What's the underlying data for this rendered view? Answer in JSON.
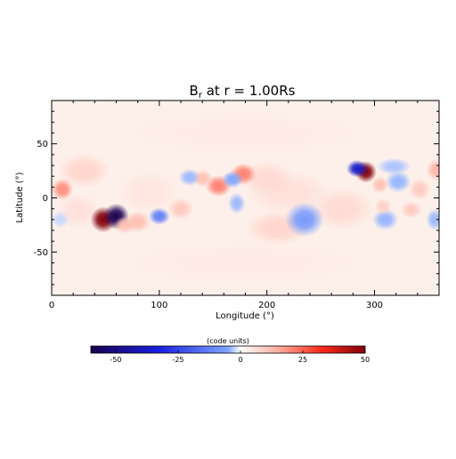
{
  "chart_data": {
    "type": "heatmap",
    "title": "B",
    "title_sub": "r",
    "title_rest": " at r = 1.00Rs",
    "xlabel": "Longitude (°)",
    "ylabel": "Latitude (°)",
    "xlim": [
      0,
      360
    ],
    "ylim": [
      -90,
      90
    ],
    "xticks": [
      0,
      100,
      200,
      300
    ],
    "yticks": [
      -50,
      0,
      50
    ],
    "grid": false,
    "colormap": "blue-white-red (diverging)",
    "colorbar": {
      "label": "(code units)",
      "range": [
        -60,
        50
      ],
      "ticks": [
        -50,
        -25,
        0,
        25,
        50
      ],
      "orientation": "horizontal",
      "placement": "bottom"
    },
    "features": [
      {
        "lon": 48,
        "lat": -20,
        "value": 50,
        "sx": 6,
        "sy": 6
      },
      {
        "lon": 60,
        "lat": -17,
        "value": -60,
        "sx": 6,
        "sy": 6
      },
      {
        "lon": 292,
        "lat": 24,
        "value": 50,
        "sx": 5,
        "sy": 5
      },
      {
        "lon": 284,
        "lat": 27,
        "value": -45,
        "sx": 5,
        "sy": 4
      },
      {
        "lon": 178,
        "lat": 22,
        "value": 22,
        "sx": 6,
        "sy": 5
      },
      {
        "lon": 155,
        "lat": 11,
        "value": 22,
        "sx": 6,
        "sy": 5
      },
      {
        "lon": 140,
        "lat": 18,
        "value": 12,
        "sx": 5,
        "sy": 4
      },
      {
        "lon": 10,
        "lat": 8,
        "value": 20,
        "sx": 5,
        "sy": 5
      },
      {
        "lon": 120,
        "lat": -10,
        "value": 10,
        "sx": 6,
        "sy": 5
      },
      {
        "lon": 80,
        "lat": -22,
        "value": 12,
        "sx": 6,
        "sy": 5
      },
      {
        "lon": 100,
        "lat": -17,
        "value": -25,
        "sx": 5,
        "sy": 4
      },
      {
        "lon": 128,
        "lat": 19,
        "value": -14,
        "sx": 5,
        "sy": 4
      },
      {
        "lon": 168,
        "lat": 17,
        "value": -18,
        "sx": 5,
        "sy": 4
      },
      {
        "lon": 172,
        "lat": -5,
        "value": -14,
        "sx": 4,
        "sy": 5
      },
      {
        "lon": 235,
        "lat": -20,
        "value": -20,
        "sx": 9,
        "sy": 8
      },
      {
        "lon": 310,
        "lat": -20,
        "value": -15,
        "sx": 6,
        "sy": 5
      },
      {
        "lon": 322,
        "lat": 15,
        "value": -15,
        "sx": 6,
        "sy": 5
      },
      {
        "lon": 318,
        "lat": 29,
        "value": -12,
        "sx": 8,
        "sy": 4
      },
      {
        "lon": 342,
        "lat": 8,
        "value": 10,
        "sx": 5,
        "sy": 5
      },
      {
        "lon": 305,
        "lat": 12,
        "value": 12,
        "sx": 4,
        "sy": 4
      },
      {
        "lon": 358,
        "lat": 26,
        "value": 14,
        "sx": 5,
        "sy": 5
      },
      {
        "lon": 356,
        "lat": -20,
        "value": -14,
        "sx": 4,
        "sy": 5
      },
      {
        "lon": 334,
        "lat": -11,
        "value": 10,
        "sx": 5,
        "sy": 4
      },
      {
        "lon": 308,
        "lat": -8,
        "value": 9,
        "sx": 4,
        "sy": 4
      },
      {
        "lon": 270,
        "lat": -10,
        "value": 7,
        "sx": 15,
        "sy": 10
      },
      {
        "lon": 200,
        "lat": 18,
        "value": 7,
        "sx": 12,
        "sy": 8
      },
      {
        "lon": 210,
        "lat": -28,
        "value": 8,
        "sx": 15,
        "sy": 8
      },
      {
        "lon": 30,
        "lat": 25,
        "value": 8,
        "sx": 12,
        "sy": 8
      },
      {
        "lon": 25,
        "lat": -12,
        "value": 6,
        "sx": 10,
        "sy": 8
      },
      {
        "lon": 8,
        "lat": -20,
        "value": -8,
        "sx": 4,
        "sy": 4
      },
      {
        "lon": 68,
        "lat": -25,
        "value": 12,
        "sx": 5,
        "sy": 4
      },
      {
        "lon": 90,
        "lat": 5,
        "value": 5,
        "sx": 15,
        "sy": 10
      },
      {
        "lon": 220,
        "lat": 5,
        "value": 6,
        "sx": 20,
        "sy": 10
      },
      {
        "lon": 180,
        "lat": -60,
        "value": 4,
        "sx": 60,
        "sy": 10
      },
      {
        "lon": 180,
        "lat": 60,
        "value": 4,
        "sx": 60,
        "sy": 10
      }
    ]
  }
}
